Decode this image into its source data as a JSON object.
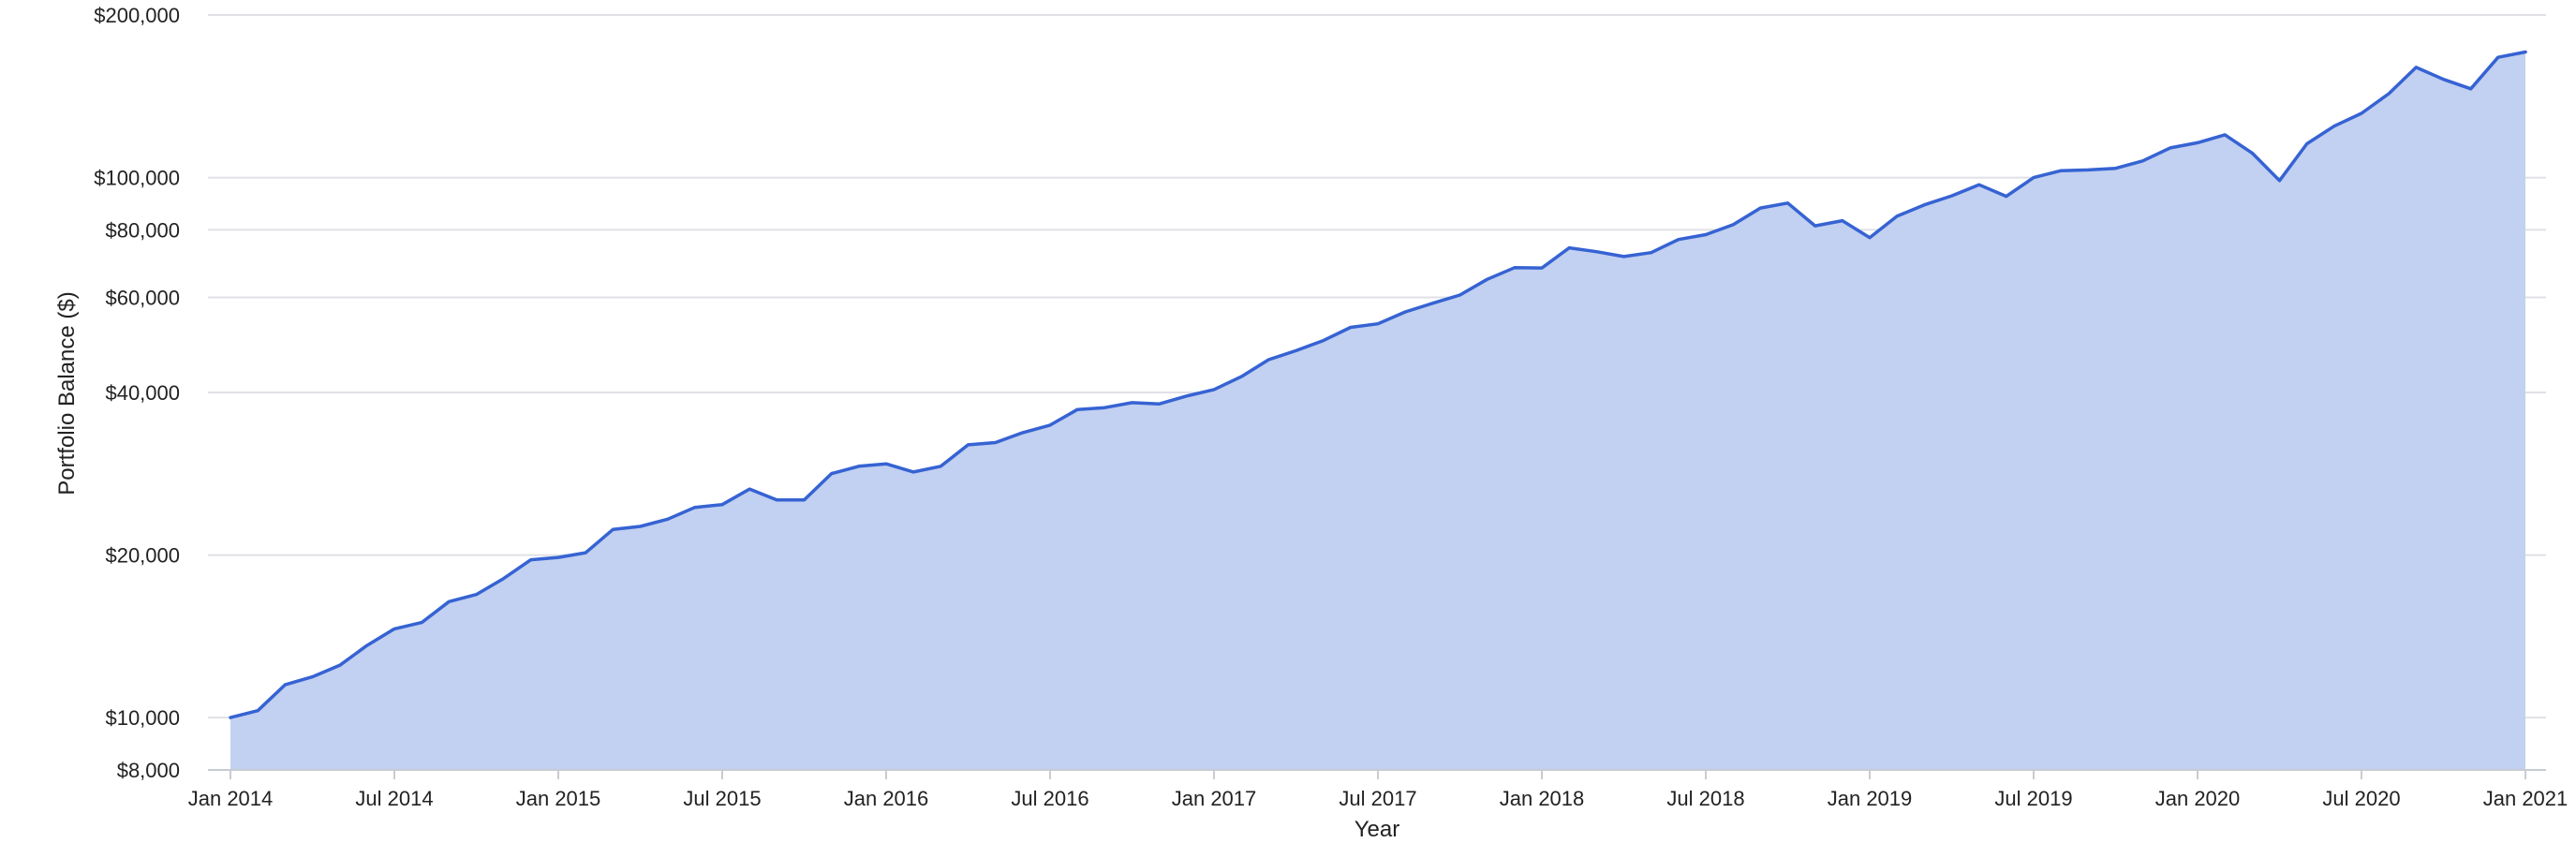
{
  "chart_data": {
    "type": "area",
    "title": "",
    "xlabel": "Year",
    "ylabel": "Portfolio Balance ($)",
    "yscale": "log",
    "ylim": [
      8000,
      200000
    ],
    "xlim": [
      "2014-01",
      "2021-01"
    ],
    "grid": true,
    "colors": {
      "line": "#3663d3",
      "fill": "#c2d0f1"
    },
    "y_ticks": [
      {
        "value": 8000,
        "label": "$8,000"
      },
      {
        "value": 10000,
        "label": "$10,000"
      },
      {
        "value": 20000,
        "label": "$20,000"
      },
      {
        "value": 40000,
        "label": "$40,000"
      },
      {
        "value": 60000,
        "label": "$60,000"
      },
      {
        "value": 80000,
        "label": "$80,000"
      },
      {
        "value": 100000,
        "label": "$100,000"
      },
      {
        "value": 200000,
        "label": "$200,000"
      }
    ],
    "x_ticks": [
      {
        "value": "2014-01",
        "label": "Jan 2014"
      },
      {
        "value": "2014-07",
        "label": "Jul 2014"
      },
      {
        "value": "2015-01",
        "label": "Jan 2015"
      },
      {
        "value": "2015-07",
        "label": "Jul 2015"
      },
      {
        "value": "2016-01",
        "label": "Jan 2016"
      },
      {
        "value": "2016-07",
        "label": "Jul 2016"
      },
      {
        "value": "2017-01",
        "label": "Jan 2017"
      },
      {
        "value": "2017-07",
        "label": "Jul 2017"
      },
      {
        "value": "2018-01",
        "label": "Jan 2018"
      },
      {
        "value": "2018-07",
        "label": "Jul 2018"
      },
      {
        "value": "2019-01",
        "label": "Jan 2019"
      },
      {
        "value": "2019-07",
        "label": "Jul 2019"
      },
      {
        "value": "2020-01",
        "label": "Jan 2020"
      },
      {
        "value": "2020-07",
        "label": "Jul 2020"
      },
      {
        "value": "2021-01",
        "label": "Jan 2021"
      }
    ],
    "series": [
      {
        "x": [
          "2014-01",
          "2014-02",
          "2014-03",
          "2014-04",
          "2014-05",
          "2014-06",
          "2014-07",
          "2014-08",
          "2014-09",
          "2014-10",
          "2014-11",
          "2014-12",
          "2015-01",
          "2015-02",
          "2015-03",
          "2015-04",
          "2015-05",
          "2015-06",
          "2015-07",
          "2015-08",
          "2015-09",
          "2015-10",
          "2015-11",
          "2015-12",
          "2016-01",
          "2016-02",
          "2016-03",
          "2016-04",
          "2016-05",
          "2016-06",
          "2016-07",
          "2016-08",
          "2016-09",
          "2016-10",
          "2016-11",
          "2016-12",
          "2017-01",
          "2017-02",
          "2017-03",
          "2017-04",
          "2017-05",
          "2017-06",
          "2017-07",
          "2017-08",
          "2017-09",
          "2017-10",
          "2017-11",
          "2017-12",
          "2018-01",
          "2018-02",
          "2018-03",
          "2018-04",
          "2018-05",
          "2018-06",
          "2018-07",
          "2018-08",
          "2018-09",
          "2018-10",
          "2018-11",
          "2018-12",
          "2019-01",
          "2019-02",
          "2019-03",
          "2019-04",
          "2019-05",
          "2019-06",
          "2019-07",
          "2019-08",
          "2019-09",
          "2019-10",
          "2019-11",
          "2019-12",
          "2020-01",
          "2020-02",
          "2020-03",
          "2020-04",
          "2020-05",
          "2020-06",
          "2020-07",
          "2020-08",
          "2020-09",
          "2020-10",
          "2020-11",
          "2020-12",
          "2021-01"
        ],
        "values": [
          10000,
          10300,
          11500,
          11900,
          12500,
          13600,
          14600,
          15000,
          16400,
          16900,
          18100,
          19600,
          19800,
          20200,
          22300,
          22600,
          23300,
          24500,
          24800,
          26500,
          25300,
          25300,
          28300,
          29200,
          29500,
          28500,
          29200,
          32000,
          32300,
          33700,
          34800,
          37200,
          37500,
          38300,
          38100,
          39400,
          40500,
          42800,
          46000,
          47800,
          49900,
          52800,
          53600,
          56400,
          58500,
          60600,
          64800,
          68100,
          68000,
          74100,
          72900,
          71400,
          72600,
          76800,
          78400,
          81800,
          87800,
          89700,
          81400,
          83200,
          77400,
          84800,
          89000,
          92500,
          97000,
          92300,
          100000,
          103000,
          103300,
          104000,
          107400,
          113500,
          116000,
          120000,
          111000,
          98700,
          115500,
          124500,
          131500,
          143000,
          160000,
          152000,
          146000,
          167000,
          170800
        ]
      }
    ]
  }
}
